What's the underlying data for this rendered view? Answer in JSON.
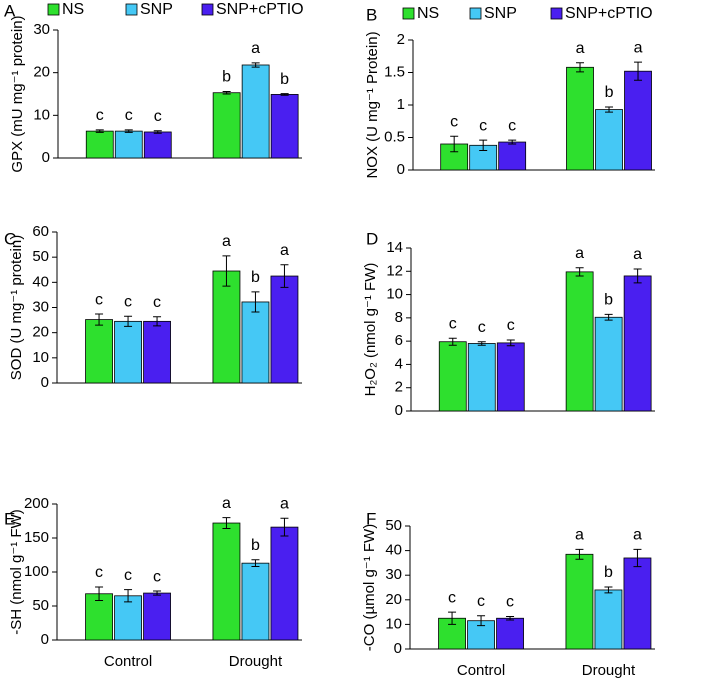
{
  "chart_data": [
    {
      "type": "bar",
      "panel": "A",
      "ylabel": "GPX (mU mg⁻¹  protein)",
      "categories": [
        null,
        null
      ],
      "legend": true,
      "ylim": [
        0,
        30
      ],
      "yticks": [
        0,
        10,
        20,
        30
      ],
      "series": [
        {
          "name": "NS",
          "color": "#2ee02e",
          "values": [
            6.3,
            15.3
          ],
          "errors": [
            0.3,
            0.3
          ],
          "letters": [
            "c",
            "b"
          ]
        },
        {
          "name": "SNP",
          "color": "#45c8f5",
          "values": [
            6.3,
            21.8
          ],
          "errors": [
            0.3,
            0.5
          ],
          "letters": [
            "c",
            "a"
          ]
        },
        {
          "name": "SNP+cPTIO",
          "color": "#4a1ff0",
          "values": [
            6.1,
            14.9
          ],
          "errors": [
            0.3,
            0.2
          ],
          "letters": [
            "c",
            "b"
          ]
        }
      ]
    },
    {
      "type": "bar",
      "panel": "B",
      "ylabel": "NOX (U mg⁻¹  Protein)",
      "categories": [
        null,
        null
      ],
      "legend": true,
      "ylim": [
        0,
        2
      ],
      "yticks": [
        0,
        0.5,
        1,
        1.5,
        2
      ],
      "series": [
        {
          "name": "NS",
          "color": "#2ee02e",
          "values": [
            0.4,
            1.58
          ],
          "errors": [
            0.12,
            0.07
          ],
          "letters": [
            "c",
            "a"
          ]
        },
        {
          "name": "SNP",
          "color": "#45c8f5",
          "values": [
            0.38,
            0.93
          ],
          "errors": [
            0.08,
            0.04
          ],
          "letters": [
            "c",
            "b"
          ]
        },
        {
          "name": "SNP+cPTIO",
          "color": "#4a1ff0",
          "values": [
            0.43,
            1.52
          ],
          "errors": [
            0.03,
            0.14
          ],
          "letters": [
            "c",
            "a"
          ]
        }
      ]
    },
    {
      "type": "bar",
      "panel": "C",
      "ylabel": "SOD  (U mg⁻¹  protein)",
      "categories": [
        null,
        null
      ],
      "legend": false,
      "ylim": [
        0,
        60
      ],
      "yticks": [
        0,
        10,
        20,
        30,
        40,
        50,
        60
      ],
      "series": [
        {
          "name": "NS",
          "color": "#2ee02e",
          "values": [
            25.2,
            44.5
          ],
          "errors": [
            2.2,
            6
          ],
          "letters": [
            "c",
            "a"
          ]
        },
        {
          "name": "SNP",
          "color": "#45c8f5",
          "values": [
            24.5,
            32.2
          ],
          "errors": [
            2,
            4
          ],
          "letters": [
            "c",
            "b"
          ]
        },
        {
          "name": "SNP+cPTIO",
          "color": "#4a1ff0",
          "values": [
            24.5,
            42.5
          ],
          "errors": [
            1.8,
            4.5
          ],
          "letters": [
            "c",
            "a"
          ]
        }
      ]
    },
    {
      "type": "bar",
      "panel": "D",
      "ylabel": "H₂O₂ (nmol g⁻¹ FW)",
      "categories": [
        null,
        null
      ],
      "legend": false,
      "ylim": [
        0,
        14
      ],
      "yticks": [
        0,
        2,
        4,
        6,
        8,
        10,
        12,
        14
      ],
      "series": [
        {
          "name": "NS",
          "color": "#2ee02e",
          "values": [
            5.95,
            11.95
          ],
          "errors": [
            0.3,
            0.35
          ],
          "letters": [
            "c",
            "a"
          ]
        },
        {
          "name": "SNP",
          "color": "#45c8f5",
          "values": [
            5.8,
            8.05
          ],
          "errors": [
            0.15,
            0.25
          ],
          "letters": [
            "c",
            "b"
          ]
        },
        {
          "name": "SNP+cPTIO",
          "color": "#4a1ff0",
          "values": [
            5.85,
            11.6
          ],
          "errors": [
            0.25,
            0.6
          ],
          "letters": [
            "c",
            "a"
          ]
        }
      ]
    },
    {
      "type": "bar",
      "panel": "E",
      "ylabel": "-SH (nmol g⁻¹ FW)",
      "categories": [
        "Control",
        "Drought"
      ],
      "legend": false,
      "ylim": [
        0,
        200
      ],
      "yticks": [
        0,
        50,
        100,
        150,
        200
      ],
      "series": [
        {
          "name": "NS",
          "color": "#2ee02e",
          "values": [
            68,
            172
          ],
          "errors": [
            10,
            8
          ],
          "letters": [
            "c",
            "a"
          ]
        },
        {
          "name": "SNP",
          "color": "#45c8f5",
          "values": [
            65,
            113
          ],
          "errors": [
            9,
            5
          ],
          "letters": [
            "c",
            "b"
          ]
        },
        {
          "name": "SNP+cPTIO",
          "color": "#4a1ff0",
          "values": [
            69,
            166
          ],
          "errors": [
            3,
            13
          ],
          "letters": [
            "c",
            "a"
          ]
        }
      ]
    },
    {
      "type": "bar",
      "panel": "F",
      "ylabel": "-CO (µmol g⁻¹ FW)",
      "categories": [
        "Control",
        "Drought"
      ],
      "legend": false,
      "ylim": [
        0,
        50
      ],
      "yticks": [
        0,
        10,
        20,
        30,
        40,
        50
      ],
      "series": [
        {
          "name": "NS",
          "color": "#2ee02e",
          "values": [
            12.5,
            38.5
          ],
          "errors": [
            2.5,
            2
          ],
          "letters": [
            "c",
            "a"
          ]
        },
        {
          "name": "SNP",
          "color": "#45c8f5",
          "values": [
            11.5,
            24
          ],
          "errors": [
            2,
            1.2
          ],
          "letters": [
            "c",
            "b"
          ]
        },
        {
          "name": "SNP+cPTIO",
          "color": "#4a1ff0",
          "values": [
            12.5,
            37
          ],
          "errors": [
            0.7,
            3.5
          ],
          "letters": [
            "c",
            "a"
          ]
        }
      ]
    }
  ]
}
